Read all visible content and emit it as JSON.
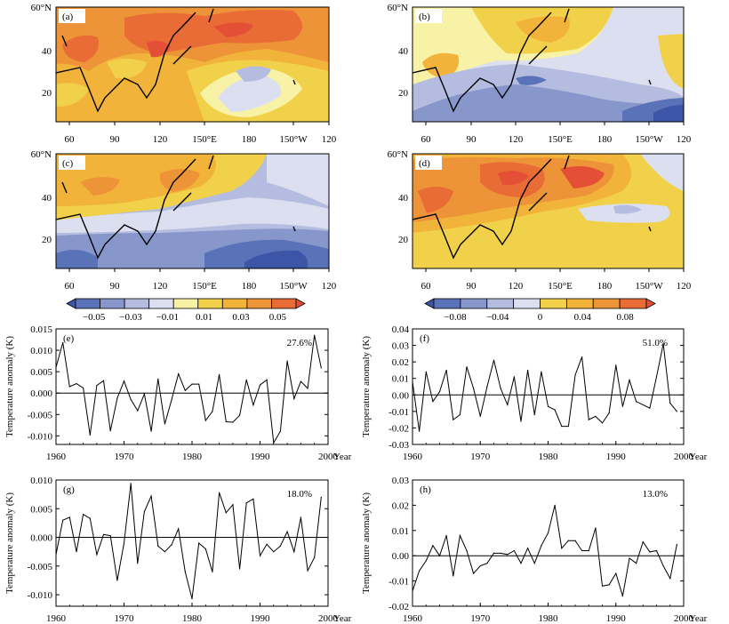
{
  "maps": [
    {
      "label": "(a)",
      "pattern": "warm_north_cool_center"
    },
    {
      "label": "(b)",
      "pattern": "cool_south_warm_north"
    },
    {
      "label": "(c)",
      "pattern": "warm_northwest_cool_southeast"
    },
    {
      "label": "(d)",
      "pattern": "warm_broad"
    }
  ],
  "map_axes": {
    "lat_ticks": [
      "60°N",
      "40",
      "20"
    ],
    "lon_ticks": [
      "60",
      "90",
      "120",
      "150°E",
      "180",
      "150°W",
      "120"
    ]
  },
  "colorbars": [
    {
      "labels": [
        "−0.05",
        "−0.03",
        "−0.01",
        "0.01",
        "0.03",
        "0.05"
      ],
      "colors": [
        "#3d55a6",
        "#5a72b8",
        "#8796cb",
        "#b4bde0",
        "#dcdff0",
        "#f7f2a6",
        "#f2d14a",
        "#f2b33b",
        "#ee9438",
        "#e96c36",
        "#e35035"
      ]
    },
    {
      "labels": [
        "−0.08",
        "−0.04",
        "0",
        "0.04",
        "0.08"
      ],
      "colors": [
        "#3d55a6",
        "#5a72b8",
        "#8796cb",
        "#b4bde0",
        "#dcdff0",
        "#f2d14a",
        "#f2b33b",
        "#ee9438",
        "#e96c36",
        "#e35035"
      ]
    }
  ],
  "chart_data": [
    {
      "type": "line",
      "label": "(e)",
      "percent": "27.6%",
      "ylabel": "Temperature anomaly (K)",
      "xlabel": "Year",
      "x_start": 1960,
      "x_ticks": [
        "1960",
        "1970",
        "1980",
        "1990",
        "2000"
      ],
      "xlim": [
        1960,
        2000
      ],
      "ylim": [
        -0.012,
        0.015
      ],
      "y_ticks": [
        "0.015",
        "0.010",
        "0.005",
        "0.000",
        "-0.005",
        "-0.010"
      ],
      "y_tick_values": [
        0.015,
        0.01,
        0.005,
        0.0,
        -0.005,
        -0.01
      ],
      "values": [
        0.006,
        0.0118,
        0.0015,
        0.0022,
        0.0012,
        -0.0098,
        0.0018,
        0.0029,
        -0.0088,
        -0.0012,
        0.0028,
        -0.0015,
        -0.0041,
        -0.0002,
        -0.0089,
        0.0033,
        -0.0072,
        -0.0016,
        0.0045,
        0.0006,
        0.0021,
        0.0021,
        -0.0064,
        -0.0043,
        0.0043,
        -0.0067,
        -0.0068,
        -0.0052,
        0.0031,
        -0.0028,
        0.0019,
        0.0031,
        -0.0116,
        -0.0089,
        0.0075,
        -0.0013,
        0.0027,
        0.0011,
        0.0135,
        0.0059
      ]
    },
    {
      "type": "line",
      "label": "(f)",
      "percent": "51.0%",
      "ylabel": "Temperature anomaly (K)",
      "xlabel": "Year",
      "x_start": 1960,
      "x_ticks": [
        "1960",
        "1970",
        "1980",
        "1990",
        "2000"
      ],
      "xlim": [
        1960,
        2000
      ],
      "ylim": [
        -0.03,
        0.04
      ],
      "y_ticks": [
        "0.04",
        "0.03",
        "0.02",
        "0.01",
        "0.00",
        "-0.01",
        "-0.02",
        "-0.03"
      ],
      "y_tick_values": [
        0.04,
        0.03,
        0.02,
        0.01,
        0.0,
        -0.01,
        -0.02,
        -0.03
      ],
      "values": [
        0.008,
        -0.022,
        0.014,
        -0.004,
        0.002,
        0.015,
        -0.015,
        -0.012,
        0.017,
        0.004,
        -0.013,
        0.005,
        0.021,
        0.004,
        -0.006,
        0.011,
        -0.016,
        0.015,
        -0.012,
        0.014,
        -0.007,
        -0.009,
        -0.019,
        -0.019,
        0.012,
        0.023,
        -0.015,
        -0.013,
        -0.017,
        -0.011,
        0.018,
        -0.007,
        0.009,
        -0.004,
        -0.006,
        -0.008,
        0.011,
        0.031,
        -0.005,
        -0.01
      ]
    },
    {
      "type": "line",
      "label": "(g)",
      "percent": "18.0%",
      "ylabel": "Temperature anomaly (K)",
      "xlabel": "Year",
      "x_start": 1960,
      "x_ticks": [
        "1960",
        "1970",
        "1980",
        "1990",
        "2000"
      ],
      "xlim": [
        1960,
        2000
      ],
      "ylim": [
        -0.012,
        0.01
      ],
      "y_ticks": [
        "0.010",
        "0.005",
        "0.000",
        "-0.005",
        "-0.010"
      ],
      "y_tick_values": [
        0.01,
        0.005,
        0.0,
        -0.005,
        -0.01
      ],
      "values": [
        -0.003,
        0.003,
        0.0035,
        -0.0025,
        0.004,
        0.0033,
        -0.003,
        0.0005,
        0.0003,
        -0.0075,
        -0.001,
        0.0094,
        -0.0045,
        0.0045,
        0.0072,
        -0.0015,
        -0.0025,
        -0.0013,
        0.0015,
        -0.006,
        -0.0107,
        -0.001,
        -0.002,
        -0.006,
        0.0078,
        0.0043,
        0.0057,
        -0.0055,
        0.006,
        0.0067,
        -0.0032,
        -0.0012,
        -0.0025,
        -0.0015,
        0.001,
        -0.0025,
        0.0035,
        -0.0058,
        -0.0035,
        0.007
      ]
    },
    {
      "type": "line",
      "label": "(h)",
      "percent": "13.0%",
      "ylabel": "Temperature anomaly (K)",
      "xlabel": "Year",
      "x_start": 1960,
      "x_ticks": [
        "1960",
        "1970",
        "1980",
        "1990",
        "2000"
      ],
      "xlim": [
        1960,
        2000
      ],
      "ylim": [
        -0.02,
        0.03
      ],
      "y_ticks": [
        "0.03",
        "0.02",
        "0.01",
        "0.00",
        "-0.01",
        "-0.02"
      ],
      "y_tick_values": [
        0.03,
        0.02,
        0.01,
        0.0,
        -0.01,
        -0.02
      ],
      "values": [
        -0.014,
        -0.006,
        -0.002,
        0.004,
        0.0,
        0.008,
        -0.008,
        0.008,
        0.002,
        -0.007,
        -0.004,
        -0.003,
        0.001,
        0.001,
        0.0005,
        0.002,
        -0.003,
        0.003,
        -0.003,
        0.004,
        0.009,
        0.02,
        0.003,
        0.006,
        0.006,
        0.002,
        0.002,
        0.011,
        -0.012,
        -0.0115,
        -0.007,
        -0.016,
        -0.001,
        -0.003,
        0.0055,
        0.0015,
        0.002,
        -0.004,
        -0.009,
        0.0045
      ]
    }
  ]
}
